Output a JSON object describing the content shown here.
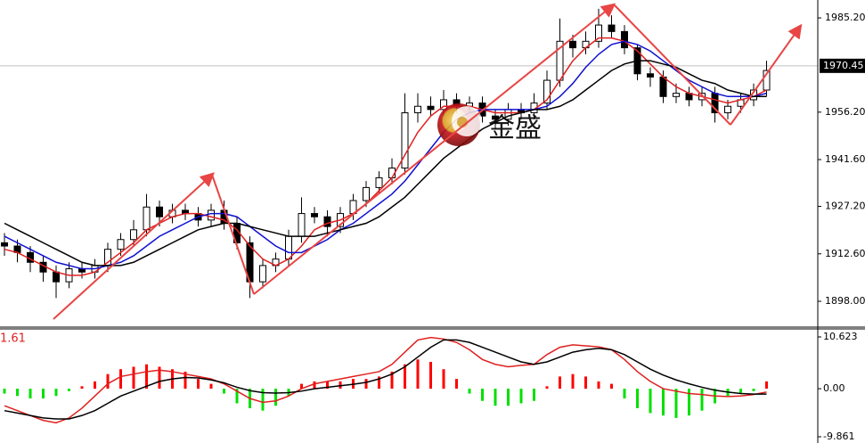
{
  "chart_data": [
    {
      "type": "candlestick",
      "open": [
        1916,
        1915,
        1913,
        1910,
        1907,
        1904,
        1908,
        1907,
        1909,
        1914,
        1917,
        1920,
        1927,
        1924,
        1926,
        1925,
        1923,
        1926,
        1922,
        1916,
        1904,
        1909,
        1911,
        1918,
        1925,
        1924,
        1921,
        1925,
        1929,
        1933,
        1936,
        1939,
        1956,
        1958,
        1957,
        1960,
        1958,
        1959,
        1955,
        1954,
        1957,
        1956,
        1959,
        1966,
        1978,
        1976,
        1978,
        1983,
        1981,
        1976,
        1968,
        1967,
        1961,
        1962,
        1960,
        1962,
        1956,
        1958,
        1960,
        1963
      ],
      "high": [
        1919,
        1917,
        1915,
        1912,
        1909,
        1910,
        1910,
        1911,
        1916,
        1919,
        1923,
        1931,
        1929,
        1928,
        1928,
        1927,
        1928,
        1929,
        1924,
        1918,
        1911,
        1913,
        1920,
        1930,
        1927,
        1926,
        1927,
        1931,
        1935,
        1938,
        1942,
        1962,
        1962,
        1961,
        1963,
        1962,
        1961,
        1961,
        1957,
        1959,
        1959,
        1962,
        1969,
        1985,
        1980,
        1981,
        1988,
        1986,
        1983,
        1977,
        1970,
        1969,
        1965,
        1964,
        1964,
        1964,
        1960,
        1962,
        1965,
        1972
      ],
      "low": [
        1912,
        1910,
        1907,
        1904,
        1899,
        1902,
        1905,
        1905,
        1907,
        1912,
        1915,
        1918,
        1921,
        1922,
        1923,
        1921,
        1921,
        1920,
        1914,
        1899,
        1902,
        1907,
        1909,
        1916,
        1922,
        1918,
        1919,
        1923,
        1927,
        1931,
        1934,
        1937,
        1953,
        1955,
        1955,
        1956,
        1956,
        1953,
        1951,
        1952,
        1954,
        1954,
        1957,
        1964,
        1973,
        1974,
        1976,
        1979,
        1974,
        1966,
        1964,
        1959,
        1959,
        1958,
        1958,
        1953,
        1954,
        1956,
        1958,
        1961
      ],
      "close": [
        1915,
        1913,
        1910,
        1907,
        1904,
        1908,
        1907,
        1909,
        1914,
        1917,
        1920,
        1927,
        1924,
        1926,
        1925,
        1923,
        1926,
        1922,
        1916,
        1904,
        1909,
        1911,
        1918,
        1925,
        1924,
        1921,
        1925,
        1929,
        1933,
        1936,
        1939,
        1956,
        1958,
        1957,
        1960,
        1958,
        1959,
        1955,
        1954,
        1957,
        1956,
        1959,
        1966,
        1978,
        1976,
        1978,
        1983,
        1981,
        1976,
        1968,
        1967,
        1961,
        1962,
        1960,
        1962,
        1956,
        1958,
        1960,
        1963,
        1969
      ],
      "series": [
        {
          "color": "#e02020",
          "values": [
            1914,
            1913,
            1911,
            1909,
            1907,
            1906,
            1906,
            1907,
            1910,
            1913,
            1916,
            1920,
            1922,
            1924,
            1925,
            1925,
            1924,
            1923,
            1920,
            1915,
            1911,
            1909,
            1911,
            1915,
            1920,
            1922,
            1923,
            1925,
            1928,
            1932,
            1936,
            1943,
            1950,
            1955,
            1958,
            1958,
            1958,
            1957,
            1956,
            1956,
            1956,
            1957,
            1960,
            1966,
            1972,
            1976,
            1979,
            1979,
            1978,
            1975,
            1971,
            1967,
            1964,
            1962,
            1961,
            1960,
            1959,
            1960,
            1961,
            1963
          ]
        },
        {
          "color": "#1010d0",
          "values": [
            1918,
            1916,
            1914,
            1912,
            1910,
            1909,
            1908,
            1908,
            1909,
            1910,
            1912,
            1915,
            1918,
            1920,
            1922,
            1924,
            1925,
            1925,
            1924,
            1921,
            1918,
            1915,
            1913,
            1913,
            1915,
            1917,
            1920,
            1922,
            1925,
            1928,
            1931,
            1935,
            1940,
            1945,
            1950,
            1954,
            1956,
            1957,
            1957,
            1957,
            1957,
            1957,
            1958,
            1961,
            1965,
            1970,
            1974,
            1977,
            1978,
            1977,
            1975,
            1972,
            1969,
            1966,
            1964,
            1962,
            1961,
            1961,
            1961,
            1962
          ]
        },
        {
          "color": "#000000",
          "values": [
            1922,
            1920,
            1918,
            1916,
            1914,
            1912,
            1910,
            1909,
            1909,
            1909,
            1910,
            1912,
            1914,
            1916,
            1918,
            1920,
            1921,
            1922,
            1922,
            1921,
            1920,
            1919,
            1918,
            1918,
            1918,
            1919,
            1920,
            1921,
            1922,
            1924,
            1927,
            1930,
            1934,
            1938,
            1942,
            1945,
            1948,
            1951,
            1953,
            1955,
            1956,
            1957,
            1957,
            1958,
            1960,
            1963,
            1966,
            1969,
            1971,
            1972,
            1972,
            1971,
            1970,
            1968,
            1966,
            1965,
            1963,
            1962,
            1961,
            1961
          ]
        }
      ],
      "up_color": "#ffffff",
      "down_color": "#000000",
      "ylim": [
        1890.6,
        1990.7
      ],
      "yticks": [
        {
          "value": 1898.0,
          "label": "1898.00"
        },
        {
          "value": 1912.6,
          "label": "1912.60"
        },
        {
          "value": 1927.2,
          "label": "1927.20"
        },
        {
          "value": 1941.6,
          "label": "1941.60"
        },
        {
          "value": 1956.2,
          "label": "1956.20"
        },
        {
          "value": 1985.2,
          "label": "1985.20"
        }
      ],
      "current_price": {
        "value": 1970.45,
        "label": "1970.45"
      },
      "watermark": "金盛"
    },
    {
      "type": "macd",
      "label": "1.61",
      "histogram": [
        -1,
        -1.5,
        -2,
        -2,
        -1.5,
        -0.5,
        0.5,
        1.5,
        3,
        4,
        4.5,
        5,
        4.5,
        4,
        3.5,
        2,
        1,
        -1,
        -3,
        -4,
        -4.5,
        -3.5,
        -1.5,
        1,
        1.5,
        1.5,
        1.5,
        2,
        2,
        2.5,
        3.5,
        5,
        6,
        5.5,
        4,
        2,
        -1,
        -2.5,
        -3.5,
        -3.5,
        -3,
        -2.5,
        0.5,
        2.5,
        3,
        2.5,
        1.5,
        1,
        -2,
        -4,
        -5,
        -5.5,
        -6,
        -5.5,
        -4.5,
        -3,
        -1.5,
        -1,
        -0.5,
        1.5
      ],
      "up_color": "#ff0000",
      "down_color": "#00e000",
      "series": [
        {
          "color": "#e02020",
          "values": [
            -3.5,
            -4.5,
            -5.5,
            -6.5,
            -7,
            -6,
            -4,
            -1.5,
            1,
            2.5,
            3,
            3.5,
            3.8,
            3.5,
            3,
            2.5,
            2,
            1,
            -0.5,
            -2,
            -2.8,
            -2.5,
            -1.5,
            0,
            1,
            1.5,
            2,
            2.5,
            3,
            3.5,
            5,
            7.5,
            10,
            10.5,
            10.2,
            9.5,
            8,
            6,
            5,
            4.5,
            4.8,
            5,
            7,
            8.5,
            9,
            8.8,
            8.6,
            8,
            6,
            3.5,
            1.5,
            0,
            -0.5,
            -1,
            -1.2,
            -1.5,
            -1.6,
            -1.5,
            -1.2,
            -0.7
          ]
        },
        {
          "color": "#000000",
          "values": [
            -4.5,
            -5,
            -5.5,
            -6,
            -6.2,
            -6.2,
            -5.5,
            -4.5,
            -3,
            -1.5,
            -0.5,
            0.5,
            1.5,
            2,
            2.3,
            2.2,
            1.8,
            1.2,
            0.3,
            -0.4,
            -0.8,
            -0.9,
            -0.8,
            -0.5,
            0,
            0.3,
            0.6,
            0.9,
            1.3,
            2,
            3,
            4.5,
            6.5,
            8.5,
            10,
            10,
            9.5,
            8.5,
            7.5,
            6.5,
            5.5,
            5,
            5.5,
            6.5,
            7.5,
            8,
            8.3,
            8,
            7,
            5.5,
            4,
            2.8,
            1.8,
            1,
            0.3,
            -0.3,
            -0.7,
            -1,
            -1.1,
            -1.1
          ]
        }
      ],
      "ylim": [
        -9.861,
        10.623
      ],
      "yticks": [
        {
          "value": 10.623,
          "label": "10.623"
        },
        {
          "value": 0,
          "label": "0.00"
        },
        {
          "value": -9.861,
          "label": "-9.861"
        }
      ]
    }
  ]
}
